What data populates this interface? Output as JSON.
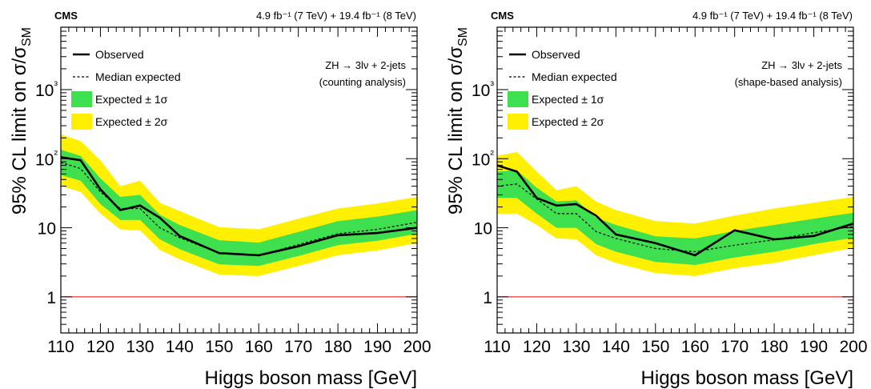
{
  "chart_data": [
    {
      "type": "line",
      "experiment": "CMS",
      "lumi_label": "4.9 fb⁻¹ (7 TeV) + 19.4 fb⁻¹ (8 TeV)",
      "annotation": [
        "ZH → 3lν + 2-jets",
        "(counting analysis)"
      ],
      "xlabel": "Higgs boson mass [GeV]",
      "ylabel": "95% CL limit on σ/σ_SM",
      "xlim": [
        110,
        200
      ],
      "ylim": [
        0.3,
        8000
      ],
      "y_scale": "log",
      "x_ticks": [
        110,
        120,
        130,
        140,
        150,
        160,
        170,
        180,
        190,
        200
      ],
      "y_ticks": [
        1,
        10,
        100,
        1000
      ],
      "y_tick_labels": [
        "1",
        "10",
        "10²",
        "10³"
      ],
      "legend": [
        "Observed",
        "Median expected",
        "Expected ± 1σ",
        "Expected ± 2σ"
      ],
      "legend_position": "top-left",
      "reference_line": 1,
      "x": [
        110,
        115,
        120,
        125,
        130,
        135,
        140,
        150,
        160,
        170,
        180,
        190,
        200
      ],
      "observed": [
        105,
        95,
        36,
        18,
        21,
        14,
        7.6,
        4.3,
        4.0,
        5.4,
        7.8,
        8.4,
        10.0
      ],
      "expected": [
        88,
        72,
        33,
        19,
        19,
        10,
        7.2,
        4.3,
        4.0,
        5.7,
        8.2,
        9.5,
        12.0
      ],
      "band_1sigma_low": [
        58,
        48,
        22,
        13,
        13,
        6.8,
        4.9,
        2.95,
        2.8,
        3.9,
        5.6,
        6.5,
        8.2
      ],
      "band_1sigma_high": [
        135,
        110,
        52,
        28,
        30,
        15.5,
        11.0,
        6.6,
        6.1,
        8.7,
        12.5,
        14.5,
        18.0
      ],
      "band_2sigma_low": [
        40,
        33,
        16,
        9.5,
        9.2,
        4.8,
        3.5,
        2.1,
        2.0,
        2.8,
        4.0,
        4.7,
        6.0
      ],
      "band_2sigma_high": [
        225,
        180,
        95,
        40,
        48,
        23,
        17.5,
        10.2,
        9.5,
        13.5,
        19,
        22.5,
        28
      ]
    },
    {
      "type": "line",
      "experiment": "CMS",
      "lumi_label": "4.9 fb⁻¹ (7 TeV) + 19.4 fb⁻¹ (8 TeV)",
      "annotation": [
        "ZH → 3lν + 2-jets",
        "(shape-based analysis)"
      ],
      "xlabel": "Higgs boson mass [GeV]",
      "ylabel": "95% CL limit on σ/σ_SM",
      "xlim": [
        110,
        200
      ],
      "ylim": [
        0.3,
        8000
      ],
      "y_scale": "log",
      "x_ticks": [
        110,
        120,
        130,
        140,
        150,
        160,
        170,
        180,
        190,
        200
      ],
      "y_ticks": [
        1,
        10,
        100,
        1000
      ],
      "y_tick_labels": [
        "1",
        "10",
        "10²",
        "10³"
      ],
      "legend": [
        "Observed",
        "Median expected",
        "Expected ± 1σ",
        "Expected ± 2σ"
      ],
      "legend_position": "top-left",
      "reference_line": 1,
      "x": [
        110,
        115,
        120,
        125,
        130,
        135,
        140,
        150,
        160,
        170,
        180,
        190,
        200
      ],
      "observed": [
        80,
        65,
        27,
        21,
        22,
        15,
        8.0,
        6.0,
        4.0,
        9.2,
        6.8,
        7.6,
        11.5
      ],
      "expected": [
        40,
        43,
        26,
        16,
        16,
        8.8,
        7.0,
        5.0,
        4.5,
        5.6,
        6.7,
        8.5,
        10.5
      ],
      "band_1sigma_low": [
        27,
        27,
        16,
        10,
        10,
        5.8,
        4.5,
        3.2,
        2.9,
        3.7,
        4.5,
        5.8,
        7.2
      ],
      "band_1sigma_high": [
        65,
        68,
        38,
        24,
        25,
        14,
        11.0,
        7.5,
        7.0,
        9.0,
        11.0,
        13.5,
        16.5
      ],
      "band_2sigma_low": [
        16,
        16,
        11,
        7,
        6.8,
        4.0,
        3.1,
        2.2,
        2.0,
        2.6,
        3.1,
        4.0,
        5.1
      ],
      "band_2sigma_high": [
        110,
        125,
        65,
        35,
        40,
        24,
        18,
        12.5,
        11.5,
        15,
        19,
        23,
        28
      ]
    }
  ]
}
